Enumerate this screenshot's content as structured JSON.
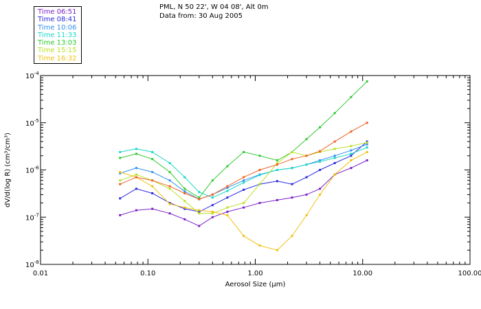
{
  "header": {
    "station": "PML, N 50 22', W 04 08', Alt 0m",
    "date_line": "Data from: 30 Aug 2005"
  },
  "chart_data": {
    "type": "line",
    "title": "PML, N 50 22', W 04 08', Alt 0m",
    "subtitle": "Data from: 30 Aug 2005",
    "xlabel": "Aerosol Size (µm)",
    "ylabel": "dV/d(log R) (cm³/cm³)",
    "xscale": "log",
    "yscale": "log",
    "xlim": [
      0.01,
      100
    ],
    "ylim": [
      1e-08,
      0.0001
    ],
    "x_ticks": [
      {
        "value": 0.01,
        "label": "0.01"
      },
      {
        "value": 0.1,
        "label": "0.10"
      },
      {
        "value": 1,
        "label": "1.00"
      },
      {
        "value": 10,
        "label": "10.00"
      },
      {
        "value": 100,
        "label": "100.00"
      }
    ],
    "y_ticks": [
      {
        "value": 1e-08,
        "mantissa": "10",
        "exp": "-8"
      },
      {
        "value": 1e-07,
        "mantissa": "10",
        "exp": "-7"
      },
      {
        "value": 1e-06,
        "mantissa": "10",
        "exp": "-6"
      },
      {
        "value": 1e-05,
        "mantissa": "10",
        "exp": "-5"
      },
      {
        "value": 0.0001,
        "mantissa": "10",
        "exp": "-4"
      }
    ],
    "x": [
      0.055,
      0.078,
      0.11,
      0.16,
      0.22,
      0.3,
      0.4,
      0.55,
      0.78,
      1.1,
      1.6,
      2.2,
      3.0,
      4.0,
      5.5,
      7.8,
      11.0
    ],
    "series": [
      {
        "name": "Time 06:51",
        "color": "#7a20c8",
        "values": [
          1.1e-07,
          1.4e-07,
          1.5e-07,
          1.2e-07,
          9e-08,
          6.5e-08,
          1e-07,
          1.3e-07,
          1.6e-07,
          2e-07,
          2.3e-07,
          2.6e-07,
          3e-07,
          4e-07,
          8e-07,
          1.1e-06,
          1.6e-06
        ]
      },
      {
        "name": "Time 08:41",
        "color": "#2a2ae0",
        "values": [
          2.5e-07,
          4e-07,
          3.2e-07,
          2e-07,
          1.5e-07,
          1.3e-07,
          1.8e-07,
          2.6e-07,
          3.8e-07,
          5e-07,
          5.8e-07,
          5e-07,
          7e-07,
          1e-06,
          1.4e-06,
          2e-06,
          4e-06
        ]
      },
      {
        "name": "Time 10:06",
        "color": "#2f8ff0",
        "values": [
          8.5e-07,
          1.1e-06,
          9e-07,
          6e-07,
          3.5e-07,
          2.4e-07,
          3e-07,
          4.2e-07,
          6e-07,
          8e-07,
          1e-06,
          1.1e-06,
          1.3e-06,
          1.6e-06,
          2e-06,
          2.6e-06,
          3.5e-06
        ]
      },
      {
        "name": "Time 11:33",
        "color": "#1ad6c6",
        "values": [
          2.4e-06,
          2.8e-06,
          2.4e-06,
          1.4e-06,
          7e-07,
          3.4e-07,
          2.6e-07,
          3.6e-07,
          5.4e-07,
          7.8e-07,
          1e-06,
          1.1e-06,
          1.3e-06,
          1.5e-06,
          1.8e-06,
          2.2e-06,
          3e-06
        ]
      },
      {
        "name": "Time 13:03",
        "color": "#2ec82e",
        "values": [
          1.8e-06,
          2.2e-06,
          1.7e-06,
          9e-07,
          4e-07,
          2.6e-07,
          6e-07,
          1.2e-06,
          2.4e-06,
          2e-06,
          1.6e-06,
          2.4e-06,
          4.5e-06,
          8e-06,
          1.6e-05,
          3.5e-05,
          7.5e-05
        ]
      },
      {
        "name": "Time 15:15",
        "color": "#b8e020",
        "values": [
          6e-07,
          8e-07,
          6e-07,
          4e-07,
          2.2e-07,
          1.2e-07,
          1.2e-07,
          1.6e-07,
          2e-07,
          5e-07,
          1.4e-06,
          2.4e-06,
          2e-06,
          2.4e-06,
          2.8e-06,
          3.2e-06,
          3.8e-06
        ]
      },
      {
        "name": "Time 16:32",
        "color": "#f0c010",
        "values": [
          9e-07,
          7e-07,
          4.5e-07,
          1.9e-07,
          1.6e-07,
          1.4e-07,
          1.3e-07,
          1.1e-07,
          4e-08,
          2.5e-08,
          2e-08,
          4e-08,
          1.1e-07,
          3e-07,
          8e-07,
          1.6e-06,
          2.4e-06
        ]
      },
      {
        "name": "",
        "color": "#f06020",
        "values": [
          5e-07,
          7e-07,
          6e-07,
          4.5e-07,
          3.2e-07,
          2.4e-07,
          3e-07,
          4.5e-07,
          7e-07,
          1e-06,
          1.3e-06,
          1.7e-06,
          2e-06,
          2.5e-06,
          4e-06,
          6.5e-06,
          1e-05
        ]
      }
    ]
  }
}
